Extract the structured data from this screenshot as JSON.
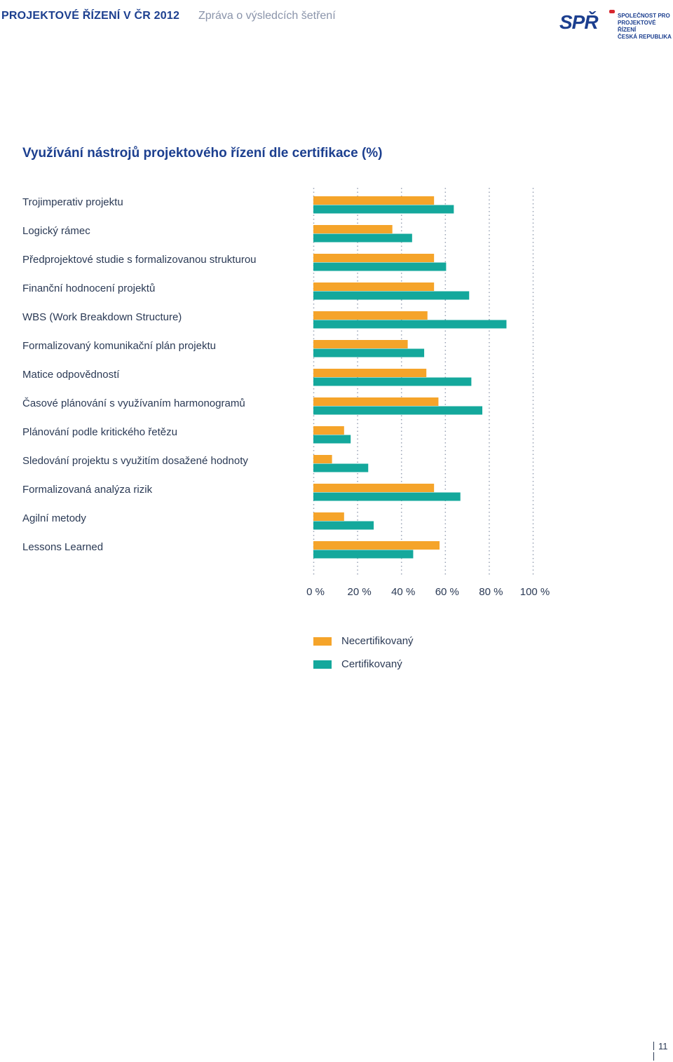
{
  "header": {
    "title": "PROJEKTOVÉ ŘÍZENÍ V ČR 2012",
    "subtitle": "Zpráva o výsledcích šetření",
    "logo": {
      "mark": "SPŘ",
      "text": [
        "SPOLEČNOST PRO",
        "PROJEKTOVÉ ŘÍZENÍ",
        "ČESKÁ REPUBLIKA"
      ]
    }
  },
  "page_number": "11",
  "colors": {
    "necertifikovany": "#f5a42a",
    "certifikovany": "#14a89c",
    "grid": "#9aa3b5"
  },
  "chart_data": {
    "type": "bar",
    "orientation": "horizontal",
    "title": "Využívání nástrojů projektového řízení dle certifikace (%)",
    "categories": [
      "Trojimperativ projektu",
      "Logický rámec",
      "Předprojektové studie s formalizovanou strukturou",
      "Finanční hodnocení projektů",
      "WBS (Work Breakdown Structure)",
      "Formalizovaný komunikační plán projektu",
      "Matice odpovědností",
      "Časové plánování s využívaním harmonogramů",
      "Plánování podle kritického řetězu",
      "Sledování projektu s využitím dosažené hodnoty",
      "Formalizovaná analýza rizik",
      "Agilní metody",
      "Lessons Learned"
    ],
    "series": [
      {
        "name": "Necertifikovaný",
        "values": [
          55,
          36,
          55,
          55,
          52,
          43,
          51.5,
          57,
          14,
          8.5,
          55,
          14,
          57.5
        ]
      },
      {
        "name": "Certifikovaný",
        "values": [
          64,
          45,
          60.5,
          71,
          88,
          50.5,
          72,
          77,
          17,
          25,
          67,
          27.5,
          45.5
        ]
      }
    ],
    "xlim": [
      0,
      100
    ],
    "ticks": [
      0,
      20,
      40,
      60,
      80,
      100
    ],
    "tick_labels": [
      "0 %",
      "20 %",
      "40 %",
      "60 %",
      "80 %",
      "100 %"
    ],
    "grid": true,
    "legend_placement": "bottom"
  }
}
